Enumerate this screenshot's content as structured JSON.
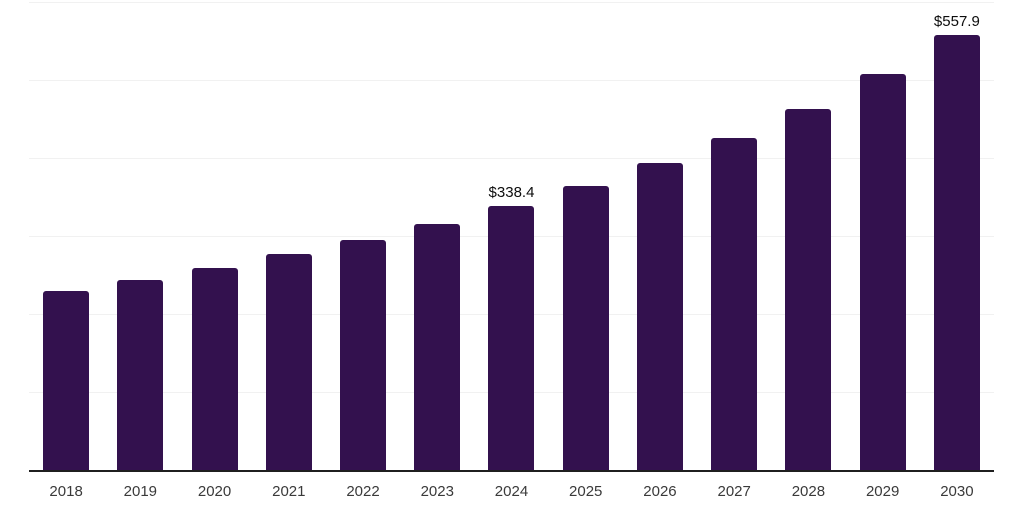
{
  "chart_data": {
    "type": "bar",
    "title": "",
    "xlabel": "",
    "ylabel": "",
    "categories": [
      "2018",
      "2019",
      "2020",
      "2021",
      "2022",
      "2023",
      "2024",
      "2025",
      "2026",
      "2027",
      "2028",
      "2029",
      "2030"
    ],
    "values": [
      229.2,
      243.2,
      258.9,
      277.3,
      295.5,
      315.6,
      338.4,
      364.1,
      393.0,
      425.4,
      462.4,
      507.9,
      557.9
    ],
    "value_labels": {
      "2024": "$338.4",
      "2030": "$557.9"
    },
    "ylim": [
      0,
      600
    ],
    "grid_step": 100,
    "grid": "horizontal-only",
    "legend_position": "none",
    "y_axis_ticks_visible": false,
    "colors": {
      "bar": "#33114e",
      "gridline": "#f1f1f1",
      "axis_line": "#1f1f1f",
      "tick_label": "#3a3a3a",
      "value_label": "#0d0d0d",
      "background": "#ffffff"
    }
  }
}
